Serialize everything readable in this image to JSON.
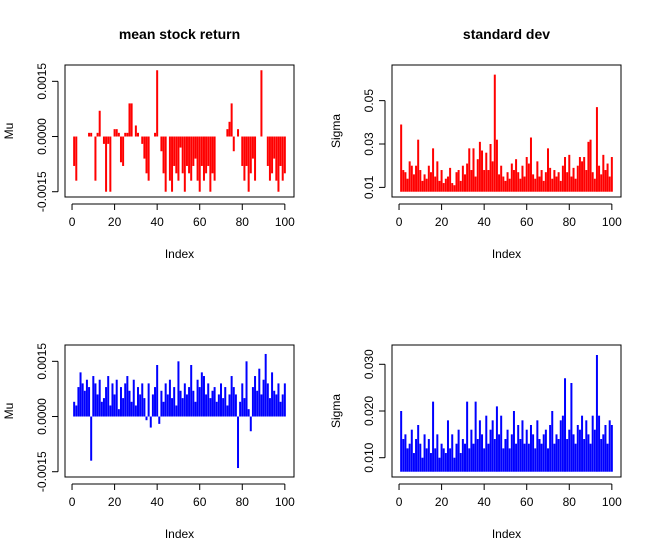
{
  "colors": {
    "red": "#ff0000",
    "blue": "#0000ff",
    "axis": "#000000"
  },
  "chart_data": [
    {
      "type": "bar",
      "title": "mean stock return",
      "xlabel": "Index",
      "ylabel": "Mu",
      "color": "#ff0000",
      "xlim": [
        1,
        100
      ],
      "ylim": [
        -0.0015,
        0.0018
      ],
      "xticks": [
        0,
        20,
        40,
        60,
        80,
        100
      ],
      "xtick_labels": [
        "0",
        "20",
        "40",
        "60",
        "80",
        "100"
      ],
      "yticks": [
        -0.0015,
        0.0,
        0.0015
      ],
      "ytick_labels": [
        "-0.0015",
        "0.0000",
        "0.0015"
      ],
      "grid": false,
      "x": [
        1,
        2,
        3,
        4,
        5,
        6,
        7,
        8,
        9,
        10,
        11,
        12,
        13,
        14,
        15,
        16,
        17,
        18,
        19,
        20,
        21,
        22,
        23,
        24,
        25,
        26,
        27,
        28,
        29,
        30,
        31,
        32,
        33,
        34,
        35,
        36,
        37,
        38,
        39,
        40,
        41,
        42,
        43,
        44,
        45,
        46,
        47,
        48,
        49,
        50,
        51,
        52,
        53,
        54,
        55,
        56,
        57,
        58,
        59,
        60,
        61,
        62,
        63,
        64,
        65,
        66,
        67,
        68,
        69,
        70,
        71,
        72,
        73,
        74,
        75,
        76,
        77,
        78,
        79,
        80,
        81,
        82,
        83,
        84,
        85,
        86,
        87,
        88,
        89,
        90,
        91,
        92,
        93,
        94,
        95,
        96,
        97,
        98,
        99,
        100
      ],
      "values": [
        -0.0008,
        -0.0012,
        0.0,
        0.0,
        0.0,
        0.0,
        0.0,
        0.0001,
        0.0001,
        0.0,
        -0.0012,
        0.0001,
        0.0007,
        0.0,
        -0.0002,
        -0.0015,
        -0.0002,
        -0.0015,
        0.0,
        0.0002,
        0.0002,
        0.0001,
        -0.0007,
        -0.0008,
        0.0001,
        0.0001,
        0.0009,
        0.0009,
        0.0,
        0.0003,
        0.0001,
        0.0,
        -0.0002,
        -0.0006,
        -0.001,
        -0.0012,
        0.0,
        0.0,
        0.0001,
        0.0018,
        0.0,
        -0.0004,
        -0.001,
        -0.0015,
        0.0,
        -0.0012,
        -0.0015,
        -0.0008,
        -0.001,
        -0.0012,
        -0.0003,
        -0.001,
        -0.0015,
        -0.0008,
        -0.001,
        -0.0012,
        -0.0008,
        -0.0006,
        -0.0012,
        -0.0015,
        -0.0008,
        -0.0012,
        -0.001,
        -0.0008,
        -0.0015,
        -0.001,
        -0.0012,
        0.0,
        0.0,
        0.0,
        0.0,
        0.0,
        0.0002,
        0.0004,
        0.0009,
        -0.0004,
        0.0,
        0.0002,
        0.0,
        -0.0008,
        -0.0012,
        -0.0008,
        -0.0015,
        -0.001,
        -0.0006,
        -0.0012,
        0.0,
        0.0,
        0.0018,
        0.0,
        0.0,
        -0.0008,
        -0.0012,
        -0.001,
        -0.0006,
        -0.0012,
        -0.0015,
        -0.0008,
        -0.0012,
        -0.001
      ]
    },
    {
      "type": "bar",
      "title": "standard dev",
      "xlabel": "Index",
      "ylabel": "Sigma",
      "color": "#ff0000",
      "xlim": [
        1,
        100
      ],
      "ylim": [
        0.008,
        0.064
      ],
      "xticks": [
        0,
        20,
        40,
        60,
        80,
        100
      ],
      "xtick_labels": [
        "0",
        "20",
        "40",
        "60",
        "80",
        "100"
      ],
      "yticks": [
        0.01,
        0.03,
        0.05
      ],
      "ytick_labels": [
        "0.01",
        "0.03",
        "0.05"
      ],
      "grid": false,
      "x": [
        1,
        2,
        3,
        4,
        5,
        6,
        7,
        8,
        9,
        10,
        11,
        12,
        13,
        14,
        15,
        16,
        17,
        18,
        19,
        20,
        21,
        22,
        23,
        24,
        25,
        26,
        27,
        28,
        29,
        30,
        31,
        32,
        33,
        34,
        35,
        36,
        37,
        38,
        39,
        40,
        41,
        42,
        43,
        44,
        45,
        46,
        47,
        48,
        49,
        50,
        51,
        52,
        53,
        54,
        55,
        56,
        57,
        58,
        59,
        60,
        61,
        62,
        63,
        64,
        65,
        66,
        67,
        68,
        69,
        70,
        71,
        72,
        73,
        74,
        75,
        76,
        77,
        78,
        79,
        80,
        81,
        82,
        83,
        84,
        85,
        86,
        87,
        88,
        89,
        90,
        91,
        92,
        93,
        94,
        95,
        96,
        97,
        98,
        99,
        100
      ],
      "values": [
        0.039,
        0.018,
        0.017,
        0.014,
        0.022,
        0.02,
        0.016,
        0.02,
        0.032,
        0.018,
        0.013,
        0.016,
        0.014,
        0.02,
        0.017,
        0.028,
        0.015,
        0.022,
        0.013,
        0.018,
        0.012,
        0.014,
        0.015,
        0.019,
        0.012,
        0.011,
        0.017,
        0.018,
        0.013,
        0.02,
        0.016,
        0.021,
        0.028,
        0.018,
        0.028,
        0.015,
        0.023,
        0.031,
        0.027,
        0.018,
        0.026,
        0.018,
        0.03,
        0.022,
        0.062,
        0.032,
        0.016,
        0.02,
        0.015,
        0.013,
        0.017,
        0.014,
        0.021,
        0.018,
        0.023,
        0.017,
        0.014,
        0.02,
        0.015,
        0.024,
        0.021,
        0.033,
        0.016,
        0.014,
        0.022,
        0.015,
        0.018,
        0.013,
        0.017,
        0.028,
        0.019,
        0.014,
        0.018,
        0.015,
        0.017,
        0.013,
        0.02,
        0.024,
        0.017,
        0.025,
        0.015,
        0.019,
        0.014,
        0.02,
        0.024,
        0.022,
        0.024,
        0.018,
        0.031,
        0.032,
        0.017,
        0.014,
        0.047,
        0.02,
        0.016,
        0.025,
        0.018,
        0.021,
        0.015,
        0.024
      ]
    },
    {
      "type": "bar",
      "title": "",
      "xlabel": "Index",
      "ylabel": "Mu",
      "color": "#0000ff",
      "xlim": [
        1,
        100
      ],
      "ylim": [
        -0.0015,
        0.0018
      ],
      "xticks": [
        0,
        20,
        40,
        60,
        80,
        100
      ],
      "xtick_labels": [
        "0",
        "20",
        "40",
        "60",
        "80",
        "100"
      ],
      "yticks": [
        -0.0015,
        0.0,
        0.0015
      ],
      "ytick_labels": [
        "-0.0015",
        "0.0000",
        "0.0015"
      ],
      "grid": false,
      "x": [
        1,
        2,
        3,
        4,
        5,
        6,
        7,
        8,
        9,
        10,
        11,
        12,
        13,
        14,
        15,
        16,
        17,
        18,
        19,
        20,
        21,
        22,
        23,
        24,
        25,
        26,
        27,
        28,
        29,
        30,
        31,
        32,
        33,
        34,
        35,
        36,
        37,
        38,
        39,
        40,
        41,
        42,
        43,
        44,
        45,
        46,
        47,
        48,
        49,
        50,
        51,
        52,
        53,
        54,
        55,
        56,
        57,
        58,
        59,
        60,
        61,
        62,
        63,
        64,
        65,
        66,
        67,
        68,
        69,
        70,
        71,
        72,
        73,
        74,
        75,
        76,
        77,
        78,
        79,
        80,
        81,
        82,
        83,
        84,
        85,
        86,
        87,
        88,
        89,
        90,
        91,
        92,
        93,
        94,
        95,
        96,
        97,
        98,
        99,
        100
      ],
      "values": [
        0.0004,
        0.0003,
        0.0008,
        0.0012,
        0.0009,
        0.0007,
        0.001,
        0.0008,
        -0.0012,
        0.0011,
        0.0009,
        0.0006,
        0.001,
        0.0004,
        0.0005,
        0.0008,
        0.0011,
        0.0003,
        0.0009,
        0.0006,
        0.001,
        0.0002,
        0.0008,
        0.0005,
        0.0009,
        0.0011,
        0.0007,
        0.0004,
        0.001,
        0.0003,
        0.0008,
        0.0006,
        0.0009,
        0.0005,
        -0.0001,
        0.0009,
        -0.0003,
        0.0006,
        0.0008,
        0.0014,
        -0.0002,
        0.0007,
        0.0004,
        0.0009,
        0.0006,
        0.001,
        0.0005,
        0.0008,
        0.0003,
        0.0015,
        0.0007,
        0.0005,
        0.0009,
        0.0006,
        0.0008,
        0.0014,
        0.0007,
        0.0004,
        0.001,
        0.0008,
        0.0012,
        0.0011,
        0.0006,
        0.0009,
        0.0005,
        0.0007,
        0.0008,
        0.0004,
        0.0006,
        0.0009,
        0.0005,
        0.0008,
        0.0003,
        0.0006,
        0.0011,
        0.0008,
        0.0006,
        -0.0014,
        0.0004,
        0.0009,
        0.0005,
        0.0015,
        0.0002,
        -0.0004,
        0.0008,
        0.0011,
        0.0007,
        0.0013,
        0.0006,
        0.001,
        0.0017,
        0.0009,
        0.0005,
        0.0012,
        0.0007,
        0.0006,
        0.0009,
        0.0004,
        0.0006,
        0.0009
      ]
    },
    {
      "type": "bar",
      "title": "",
      "xlabel": "Index",
      "ylabel": "Sigma",
      "color": "#0000ff",
      "xlim": [
        1,
        100
      ],
      "ylim": [
        0.007,
        0.033
      ],
      "xticks": [
        0,
        20,
        40,
        60,
        80,
        100
      ],
      "xtick_labels": [
        "0",
        "20",
        "40",
        "60",
        "80",
        "100"
      ],
      "yticks": [
        0.01,
        0.02,
        0.03
      ],
      "ytick_labels": [
        "0.010",
        "0.020",
        "0.030"
      ],
      "grid": false,
      "x": [
        1,
        2,
        3,
        4,
        5,
        6,
        7,
        8,
        9,
        10,
        11,
        12,
        13,
        14,
        15,
        16,
        17,
        18,
        19,
        20,
        21,
        22,
        23,
        24,
        25,
        26,
        27,
        28,
        29,
        30,
        31,
        32,
        33,
        34,
        35,
        36,
        37,
        38,
        39,
        40,
        41,
        42,
        43,
        44,
        45,
        46,
        47,
        48,
        49,
        50,
        51,
        52,
        53,
        54,
        55,
        56,
        57,
        58,
        59,
        60,
        61,
        62,
        63,
        64,
        65,
        66,
        67,
        68,
        69,
        70,
        71,
        72,
        73,
        74,
        75,
        76,
        77,
        78,
        79,
        80,
        81,
        82,
        83,
        84,
        85,
        86,
        87,
        88,
        89,
        90,
        91,
        92,
        93,
        94,
        95,
        96,
        97,
        98,
        99,
        100
      ],
      "values": [
        0.02,
        0.014,
        0.015,
        0.012,
        0.013,
        0.016,
        0.011,
        0.014,
        0.017,
        0.013,
        0.01,
        0.015,
        0.012,
        0.014,
        0.011,
        0.022,
        0.012,
        0.015,
        0.01,
        0.013,
        0.012,
        0.011,
        0.018,
        0.012,
        0.015,
        0.01,
        0.013,
        0.016,
        0.011,
        0.014,
        0.013,
        0.022,
        0.012,
        0.016,
        0.013,
        0.022,
        0.014,
        0.018,
        0.015,
        0.012,
        0.019,
        0.013,
        0.016,
        0.018,
        0.014,
        0.021,
        0.015,
        0.019,
        0.012,
        0.014,
        0.016,
        0.012,
        0.015,
        0.02,
        0.013,
        0.017,
        0.014,
        0.018,
        0.013,
        0.016,
        0.013,
        0.017,
        0.015,
        0.012,
        0.018,
        0.014,
        0.013,
        0.015,
        0.016,
        0.012,
        0.017,
        0.02,
        0.013,
        0.015,
        0.014,
        0.018,
        0.019,
        0.027,
        0.014,
        0.016,
        0.026,
        0.015,
        0.013,
        0.017,
        0.016,
        0.019,
        0.014,
        0.018,
        0.015,
        0.013,
        0.019,
        0.016,
        0.032,
        0.019,
        0.014,
        0.015,
        0.017,
        0.013,
        0.018,
        0.017
      ]
    }
  ]
}
